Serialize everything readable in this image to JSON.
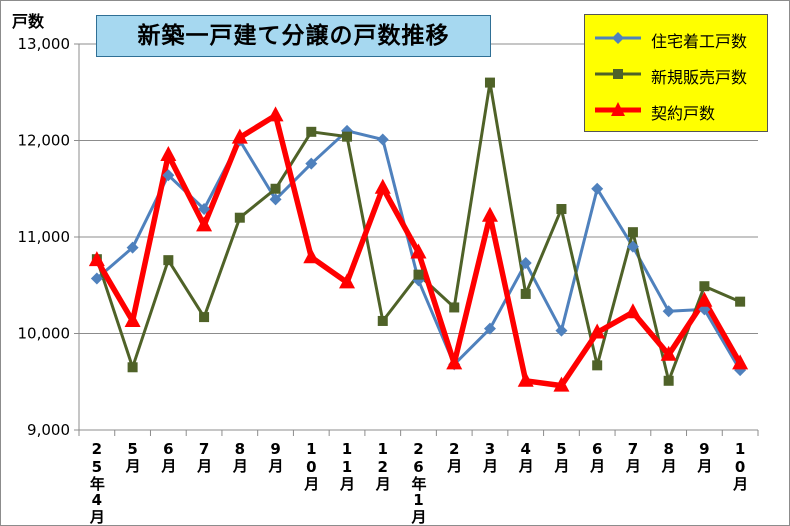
{
  "chart_data": {
    "type": "line",
    "title": "新築一戸建て分譲の戸数推移",
    "ylabel": "戸数",
    "xlabel": "",
    "ylim": [
      9000,
      13000
    ],
    "yticks": [
      "9,000",
      "10,000",
      "11,000",
      "12,000",
      "13,000"
    ],
    "ytick_values": [
      9000,
      10000,
      11000,
      12000,
      13000
    ],
    "categories": [
      "25年4月",
      "5月",
      "6月",
      "7月",
      "8月",
      "9月",
      "10月",
      "11月",
      "12月",
      "26年1月",
      "2月",
      "3月",
      "4月",
      "5月",
      "6月",
      "7月",
      "8月",
      "9月",
      "10月"
    ],
    "legend_position": "top-right",
    "grid": true,
    "series": [
      {
        "name": "住宅着工戸数",
        "color": "#4f81bd",
        "marker": "diamond",
        "values": [
          10570,
          10890,
          11640,
          11290,
          12000,
          11390,
          11760,
          12100,
          12010,
          10550,
          9680,
          10050,
          10730,
          10030,
          11500,
          10900,
          10230,
          10250,
          9620
        ]
      },
      {
        "name": "新規販売戸数",
        "color": "#4f6228",
        "marker": "square",
        "values": [
          10770,
          9650,
          10760,
          10170,
          11200,
          11500,
          12090,
          12040,
          10130,
          10610,
          10270,
          12600,
          10410,
          11290,
          9670,
          11050,
          9510,
          10490,
          10330
        ]
      },
      {
        "name": "契約戸数",
        "color": "#ff0000",
        "marker": "triangle",
        "values": [
          10760,
          10130,
          11850,
          11120,
          12030,
          12260,
          10790,
          10530,
          11510,
          10840,
          9690,
          11220,
          9510,
          9460,
          10010,
          10220,
          9780,
          10340,
          9690
        ]
      }
    ]
  }
}
